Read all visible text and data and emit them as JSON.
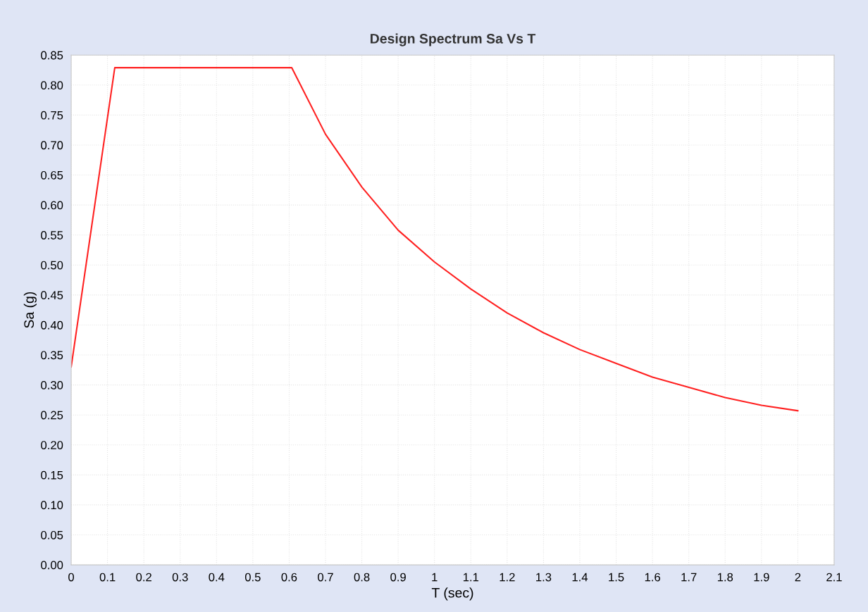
{
  "chart_data": {
    "type": "line",
    "title": "Design Spectrum Sa Vs T",
    "xlabel": "T (sec)",
    "ylabel": "Sa (g)",
    "series": [
      {
        "color": "#ff2020",
        "x": [
          0,
          0.12,
          0.3,
          0.607,
          0.7,
          0.8,
          0.9,
          1.0,
          1.1,
          1.2,
          1.3,
          1.4,
          1.5,
          1.6,
          1.7,
          1.8,
          1.9,
          2.0
        ],
        "values": [
          0.33,
          0.829,
          0.829,
          0.829,
          0.718,
          0.63,
          0.558,
          0.505,
          0.46,
          0.42,
          0.387,
          0.359,
          0.336,
          0.313,
          0.296,
          0.279,
          0.266,
          0.257
        ]
      }
    ],
    "xlim": [
      0,
      2.1
    ],
    "xticks": [
      0,
      0.1,
      0.2,
      0.3,
      0.4,
      0.5,
      0.6,
      0.7,
      0.8,
      0.9,
      1,
      1.1,
      1.2,
      1.3,
      1.4,
      1.5,
      1.6,
      1.7,
      1.8,
      1.9,
      2,
      2.1
    ],
    "ylim": [
      0,
      0.85
    ],
    "yticks": [
      {
        "value": 0,
        "label": "0.00"
      },
      {
        "value": 0.05,
        "label": "0.05"
      },
      {
        "value": 0.1,
        "label": "0.10"
      },
      {
        "value": 0.15,
        "label": "0.15"
      },
      {
        "value": 0.2,
        "label": "0.20"
      },
      {
        "value": 0.25,
        "label": "0.25"
      },
      {
        "value": 0.3,
        "label": "0.30"
      },
      {
        "value": 0.35,
        "label": "0.35"
      },
      {
        "value": 0.4,
        "label": "0.40"
      },
      {
        "value": 0.45,
        "label": "0.45"
      },
      {
        "value": 0.5,
        "label": "0.50"
      },
      {
        "value": 0.55,
        "label": "0.55"
      },
      {
        "value": 0.6,
        "label": "0.60"
      },
      {
        "value": 0.65,
        "label": "0.65"
      },
      {
        "value": 0.7,
        "label": "0.70"
      },
      {
        "value": 0.75,
        "label": "0.75"
      },
      {
        "value": 0.8,
        "label": "0.80"
      },
      {
        "value": 0.85,
        "label": "0.85"
      }
    ],
    "grid": true,
    "marker": "none",
    "line_style": "solid"
  }
}
